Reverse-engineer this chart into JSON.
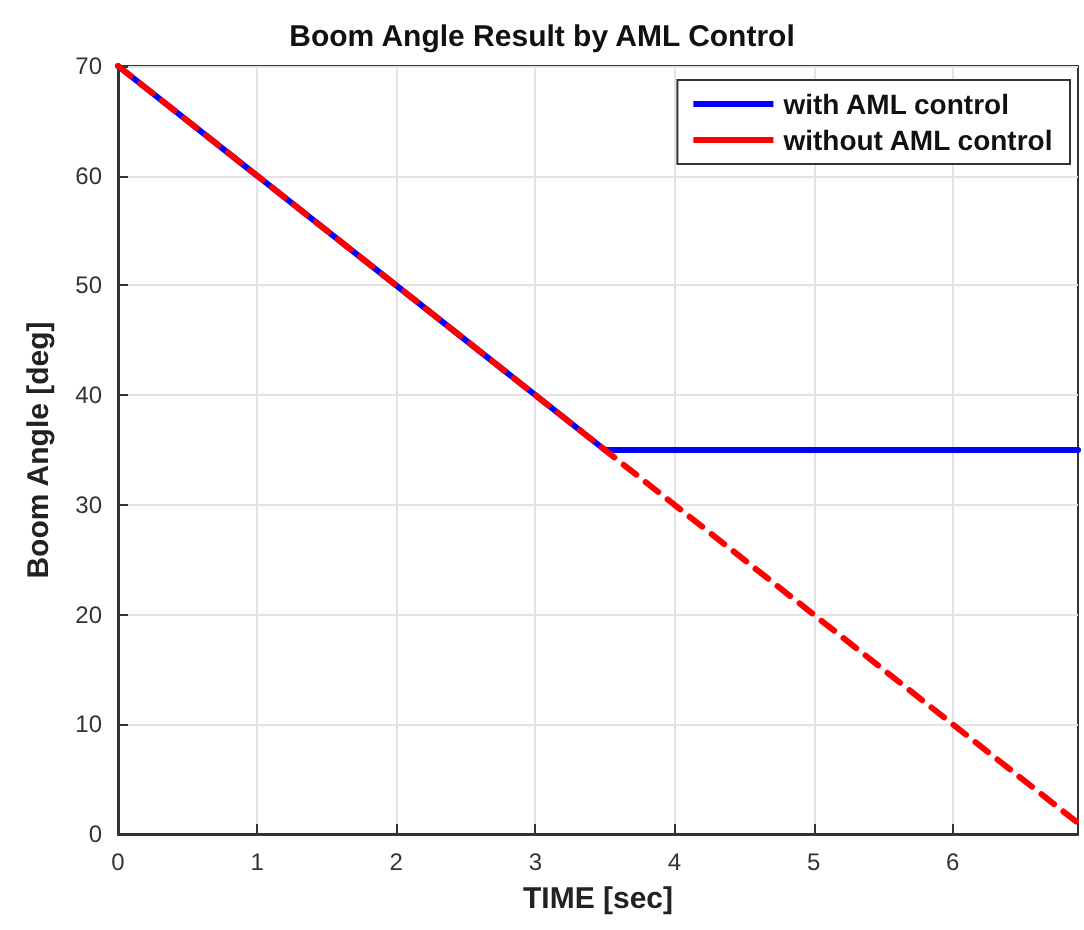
{
  "chart_data": {
    "type": "line",
    "title": "Boom Angle Result by AML Control",
    "xlabel": "TIME [sec]",
    "ylabel": "Boom Angle [deg]",
    "xlim": [
      0,
      6.9
    ],
    "xticks": [
      0,
      1,
      2,
      3,
      4,
      5,
      6
    ],
    "ylim": [
      0,
      70
    ],
    "yticks": [
      0,
      10,
      20,
      30,
      40,
      50,
      60,
      70
    ],
    "grid": true,
    "legend": "top right",
    "marker": "none",
    "series": [
      {
        "name": "with AML control",
        "color": "#0000ff",
        "x": [
          0,
          3.5,
          6.9
        ],
        "values": [
          70,
          35,
          35
        ],
        "line_style": "solid"
      },
      {
        "name": "without AML control",
        "color": "#ff0000",
        "x": [
          0,
          6.9
        ],
        "values": [
          70,
          1
        ],
        "line_style": "dashed"
      }
    ]
  }
}
